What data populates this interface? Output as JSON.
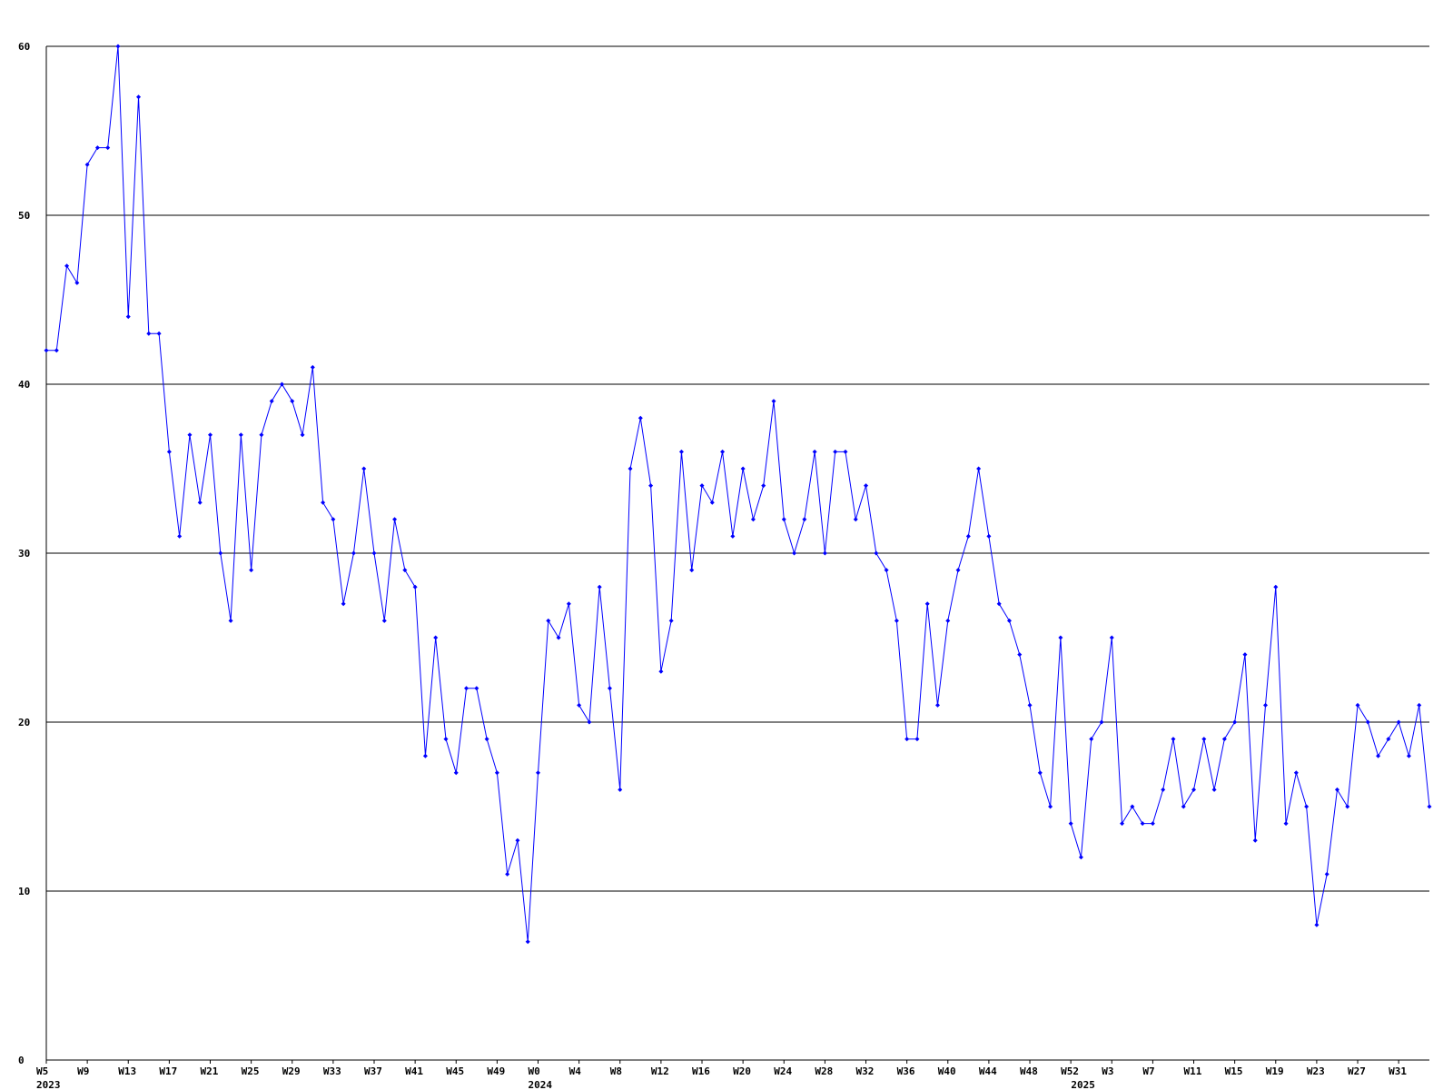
{
  "chart_data": {
    "type": "line",
    "categories": [
      "W5",
      null,
      null,
      null,
      "W9",
      null,
      null,
      null,
      "W13",
      null,
      null,
      null,
      "W17",
      null,
      null,
      null,
      "W21",
      null,
      null,
      null,
      "W25",
      null,
      null,
      null,
      "W29",
      null,
      null,
      null,
      "W33",
      null,
      null,
      null,
      "W37",
      null,
      null,
      null,
      "W41",
      null,
      null,
      null,
      "W45",
      null,
      null,
      null,
      "W49",
      null,
      null,
      null,
      "W0",
      null,
      null,
      null,
      "W4",
      null,
      null,
      null,
      "W8",
      null,
      null,
      null,
      "W12",
      null,
      null,
      null,
      "W16",
      null,
      null,
      null,
      "W20",
      null,
      null,
      null,
      "W24",
      null,
      null,
      null,
      "W28",
      null,
      null,
      null,
      "W32",
      null,
      null,
      null,
      "W36",
      null,
      null,
      null,
      "W40",
      null,
      null,
      null,
      "W44",
      null,
      null,
      null,
      "W48",
      null,
      null,
      null,
      "W52",
      null,
      null,
      null,
      "W3",
      null,
      null,
      null,
      "W7",
      null,
      null,
      null,
      "W11",
      null,
      null,
      null,
      "W15",
      null,
      null,
      null,
      "W19",
      null,
      null,
      null,
      "W23",
      null,
      null,
      null,
      "W27",
      null,
      null,
      null,
      "W31",
      null,
      null,
      null
    ],
    "years": [
      "2023",
      null,
      null,
      null,
      null,
      null,
      null,
      null,
      null,
      null,
      null,
      null,
      null,
      null,
      null,
      null,
      null,
      null,
      null,
      null,
      null,
      null,
      null,
      null,
      null,
      null,
      null,
      null,
      null,
      null,
      null,
      null,
      null,
      null,
      null,
      null,
      null,
      null,
      null,
      null,
      null,
      null,
      null,
      null,
      null,
      null,
      null,
      null,
      "2024",
      null,
      null,
      null,
      null,
      null,
      null,
      null,
      null,
      null,
      null,
      null,
      null,
      null,
      null,
      null,
      null,
      null,
      null,
      null,
      null,
      null,
      null,
      null,
      null,
      null,
      null,
      null,
      null,
      null,
      null,
      null,
      null,
      null,
      null,
      null,
      null,
      null,
      null,
      null,
      null,
      null,
      null,
      null,
      null,
      null,
      null,
      null,
      null,
      null,
      null,
      null,
      null,
      "2025",
      null,
      null,
      null,
      null,
      null,
      null,
      null,
      null,
      null,
      null,
      null,
      null,
      null,
      null,
      null,
      null,
      null,
      null,
      null,
      null,
      null,
      null,
      null,
      null,
      null,
      null,
      null,
      null,
      null,
      null,
      null,
      null,
      null,
      null
    ],
    "series": [
      {
        "color": "#0000ff",
        "values": [
          42,
          42,
          47,
          46,
          53,
          54,
          54,
          60,
          44,
          57,
          43,
          43,
          36,
          31,
          37,
          33,
          37,
          30,
          26,
          37,
          29,
          37,
          39,
          40,
          39,
          37,
          41,
          33,
          32,
          27,
          30,
          35,
          30,
          26,
          32,
          29,
          28,
          18,
          25,
          19,
          17,
          22,
          22,
          19,
          17,
          11,
          13,
          7,
          17,
          26,
          25,
          27,
          21,
          20,
          28,
          22,
          16,
          35,
          38,
          34,
          23,
          26,
          36,
          29,
          34,
          33,
          36,
          31,
          35,
          32,
          34,
          39,
          32,
          30,
          32,
          36,
          30,
          36,
          36,
          32,
          34,
          30,
          29,
          26,
          19,
          19,
          27,
          21,
          26,
          29,
          31,
          35,
          31,
          27,
          26,
          24,
          21,
          17,
          15,
          25,
          14,
          12,
          19,
          20,
          25,
          14,
          15,
          14,
          14,
          16,
          19,
          15,
          16,
          19,
          16,
          19,
          20,
          24,
          13,
          21,
          28,
          14,
          17,
          15,
          8,
          11,
          16,
          15,
          21,
          20,
          18,
          19,
          20,
          18,
          21,
          15
        ]
      }
    ],
    "ylim": [
      0,
      60
    ],
    "yticks": [
      0,
      10,
      20,
      30,
      40,
      50,
      60
    ],
    "grid": true
  }
}
